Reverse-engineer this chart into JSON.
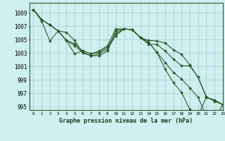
{
  "title": "Graphe pression niveau de la mer (hPa)",
  "bg_color": "#cff0f0",
  "grid_color": "#b0d0d0",
  "line_color": "#2d5a2d",
  "marker_color": "#2d5a2d",
  "xlim": [
    -0.5,
    23
  ],
  "ylim": [
    994.5,
    1010.5
  ],
  "yticks": [
    995,
    997,
    999,
    1001,
    1003,
    1005,
    1007,
    1009
  ],
  "xticks": [
    0,
    1,
    2,
    3,
    4,
    5,
    6,
    7,
    8,
    9,
    10,
    11,
    12,
    13,
    14,
    15,
    16,
    17,
    18,
    19,
    20,
    21,
    22,
    23
  ],
  "series": [
    [
      1009.5,
      1008.0,
      1007.2,
      1006.3,
      1006.1,
      1004.9,
      1003.0,
      1002.6,
      1002.6,
      1003.3,
      1006.3,
      1006.6,
      1006.5,
      1005.3,
      1004.9,
      1004.8,
      1004.5,
      1003.5,
      1002.8,
      1001.2,
      999.4,
      996.5,
      995.8,
      995.3
    ],
    [
      1009.5,
      1008.0,
      1007.2,
      1006.3,
      1004.9,
      1004.1,
      1003.1,
      1002.6,
      1002.9,
      1003.6,
      1005.6,
      1006.6,
      1006.5,
      1005.3,
      1004.3,
      1004.3,
      1003.3,
      1002.1,
      1001.1,
      1001.1,
      999.4,
      996.4,
      995.9,
      995.3
    ],
    [
      1009.5,
      1008.0,
      1007.2,
      1006.3,
      1004.9,
      1004.4,
      1003.3,
      1002.9,
      1003.1,
      1003.9,
      1005.9,
      1006.6,
      1006.5,
      1005.3,
      1004.6,
      1003.1,
      1001.6,
      1000.1,
      999.1,
      997.8,
      996.4,
      993.6,
      993.1,
      995.3
    ],
    [
      1009.5,
      1007.8,
      1004.8,
      1006.3,
      1004.9,
      1002.9,
      1003.3,
      1002.9,
      1003.3,
      1004.1,
      1006.6,
      1006.6,
      1006.5,
      1005.3,
      1004.6,
      1003.1,
      1000.6,
      998.6,
      997.1,
      994.6,
      993.6,
      996.4,
      996.0,
      995.3
    ]
  ]
}
